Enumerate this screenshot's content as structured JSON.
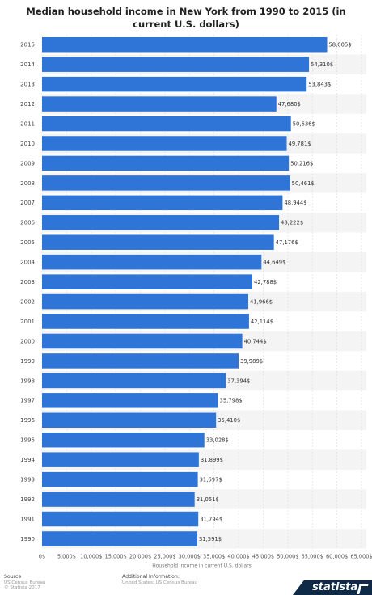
{
  "title": "Median household income in New York from 1990 to 2015 (in current U.S. dollars)",
  "footer": {
    "source_heading": "Source",
    "source_line1": "US Census Bureau",
    "source_line2": "© Statista 2017",
    "info_heading": "Additional Information:",
    "info_line1": "United States; US Census Bureau",
    "logo_text": "statista"
  },
  "colors": {
    "bar": "#2f75d8",
    "row_alt": "#f4f4f4",
    "grid": "#dddddd"
  },
  "chart_data": {
    "type": "bar",
    "orientation": "horizontal",
    "title": "Median household income in New York from 1990 to 2015 (in current U.S. dollars)",
    "xlabel": "Household income in current U.S. dollars",
    "ylabel": "",
    "xlim": [
      0,
      65000
    ],
    "x_ticks": [
      "0$",
      "5,000$",
      "10,000$",
      "15,000$",
      "20,000$",
      "25,000$",
      "30,000$",
      "35,000$",
      "40,000$",
      "45,000$",
      "50,000$",
      "55,000$",
      "60,000$",
      "65,000$"
    ],
    "categories": [
      "2015",
      "2014",
      "2013",
      "2012",
      "2011",
      "2010",
      "2009",
      "2008",
      "2007",
      "2006",
      "2005",
      "2004",
      "2003",
      "2002",
      "2001",
      "2000",
      "1999",
      "1998",
      "1997",
      "1996",
      "1995",
      "1994",
      "1993",
      "1992",
      "1991",
      "1990"
    ],
    "values": [
      58005,
      54310,
      53843,
      47680,
      50636,
      49781,
      50216,
      50461,
      48944,
      48222,
      47176,
      44649,
      42788,
      41966,
      42114,
      40744,
      39989,
      37394,
      35798,
      35410,
      33028,
      31899,
      31697,
      31051,
      31794,
      31591
    ],
    "value_labels": [
      "58,005$",
      "54,310$",
      "53,843$",
      "47,680$",
      "50,636$",
      "49,781$",
      "50,216$",
      "50,461$",
      "48,944$",
      "48,222$",
      "47,176$",
      "44,649$",
      "42,788$",
      "41,966$",
      "42,114$",
      "40,744$",
      "39,989$",
      "37,394$",
      "35,798$",
      "35,410$",
      "33,028$",
      "31,899$",
      "31,697$",
      "31,051$",
      "31,794$",
      "31,591$"
    ],
    "grid": true,
    "legend": "none"
  }
}
